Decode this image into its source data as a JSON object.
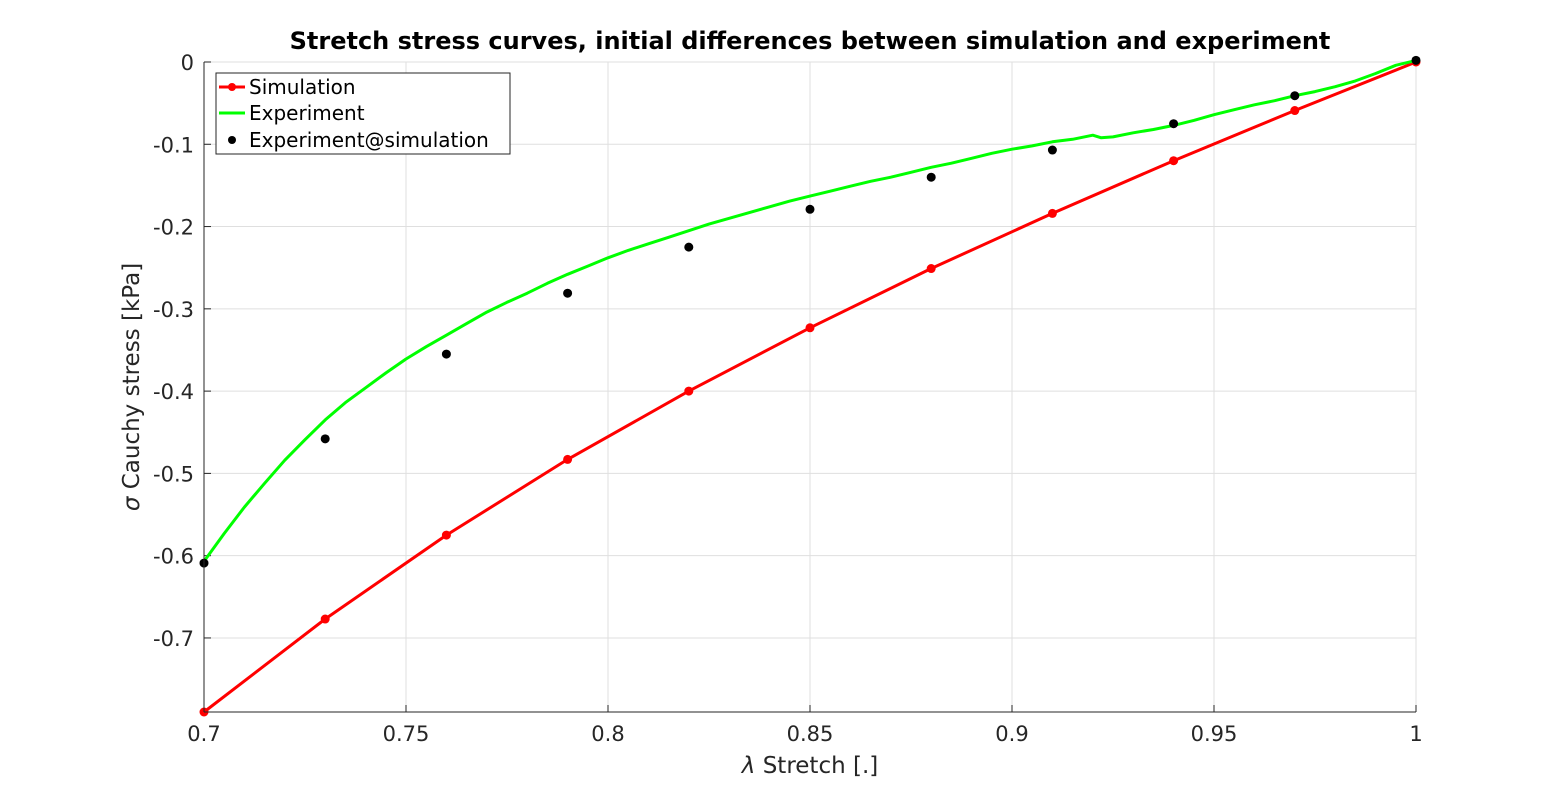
{
  "chart_data": {
    "type": "line",
    "title": "Stretch stress curves, initial differences between simulation and experiment",
    "xlabel_symbol": "λ",
    "xlabel": "Stretch [.]",
    "ylabel_symbol": "σ",
    "ylabel": "Cauchy stress [kPa]",
    "xlim": [
      0.7,
      1.0
    ],
    "ylim": [
      -0.79,
      0.0
    ],
    "xticks": [
      0.7,
      0.75,
      0.8,
      0.85,
      0.9,
      0.95,
      1.0
    ],
    "xtick_labels": [
      "0.7",
      "0.75",
      "0.8",
      "0.85",
      "0.9",
      "0.95",
      "1"
    ],
    "yticks": [
      0,
      -0.1,
      -0.2,
      -0.3,
      -0.4,
      -0.5,
      -0.6,
      -0.7
    ],
    "ytick_labels": [
      "0",
      "-0.1",
      "-0.2",
      "-0.3",
      "-0.4",
      "-0.5",
      "-0.6",
      "-0.7"
    ],
    "grid": true,
    "legend_position": "top-left",
    "series": [
      {
        "name": "Simulation",
        "color": "#ff0000",
        "style": "line-with-markers",
        "x": [
          0.7,
          0.73,
          0.76,
          0.79,
          0.82,
          0.85,
          0.88,
          0.91,
          0.94,
          0.97,
          1.0
        ],
        "y": [
          -0.79,
          -0.677,
          -0.575,
          -0.483,
          -0.4,
          -0.323,
          -0.251,
          -0.184,
          -0.12,
          -0.059,
          0.0
        ]
      },
      {
        "name": "Experiment",
        "color": "#00ff00",
        "style": "line",
        "x": [
          0.7,
          0.705,
          0.71,
          0.715,
          0.72,
          0.725,
          0.73,
          0.735,
          0.74,
          0.745,
          0.75,
          0.755,
          0.76,
          0.765,
          0.77,
          0.775,
          0.78,
          0.785,
          0.79,
          0.795,
          0.8,
          0.805,
          0.81,
          0.815,
          0.82,
          0.825,
          0.83,
          0.835,
          0.84,
          0.845,
          0.85,
          0.855,
          0.86,
          0.865,
          0.87,
          0.875,
          0.88,
          0.885,
          0.89,
          0.895,
          0.9,
          0.905,
          0.91,
          0.915,
          0.92,
          0.922,
          0.925,
          0.93,
          0.935,
          0.94,
          0.945,
          0.95,
          0.955,
          0.96,
          0.965,
          0.97,
          0.975,
          0.98,
          0.985,
          0.99,
          0.995,
          1.0
        ],
        "y": [
          -0.607,
          -0.573,
          -0.541,
          -0.512,
          -0.484,
          -0.459,
          -0.435,
          -0.414,
          -0.396,
          -0.378,
          -0.361,
          -0.346,
          -0.332,
          -0.318,
          -0.304,
          -0.292,
          -0.281,
          -0.269,
          -0.258,
          -0.248,
          -0.238,
          -0.229,
          -0.221,
          -0.213,
          -0.205,
          -0.197,
          -0.19,
          -0.183,
          -0.176,
          -0.169,
          -0.163,
          -0.157,
          -0.151,
          -0.145,
          -0.14,
          -0.134,
          -0.128,
          -0.123,
          -0.117,
          -0.111,
          -0.106,
          -0.102,
          -0.097,
          -0.094,
          -0.089,
          -0.092,
          -0.091,
          -0.086,
          -0.082,
          -0.077,
          -0.071,
          -0.064,
          -0.058,
          -0.052,
          -0.047,
          -0.041,
          -0.036,
          -0.03,
          -0.023,
          -0.014,
          -0.004,
          0.002
        ]
      },
      {
        "name": "Experiment@simulation",
        "color": "#000000",
        "style": "markers",
        "x": [
          0.7,
          0.73,
          0.76,
          0.79,
          0.82,
          0.85,
          0.88,
          0.91,
          0.94,
          0.97,
          1.0
        ],
        "y": [
          -0.609,
          -0.458,
          -0.355,
          -0.281,
          -0.225,
          -0.179,
          -0.14,
          -0.107,
          -0.075,
          -0.041,
          0.002
        ]
      }
    ]
  }
}
